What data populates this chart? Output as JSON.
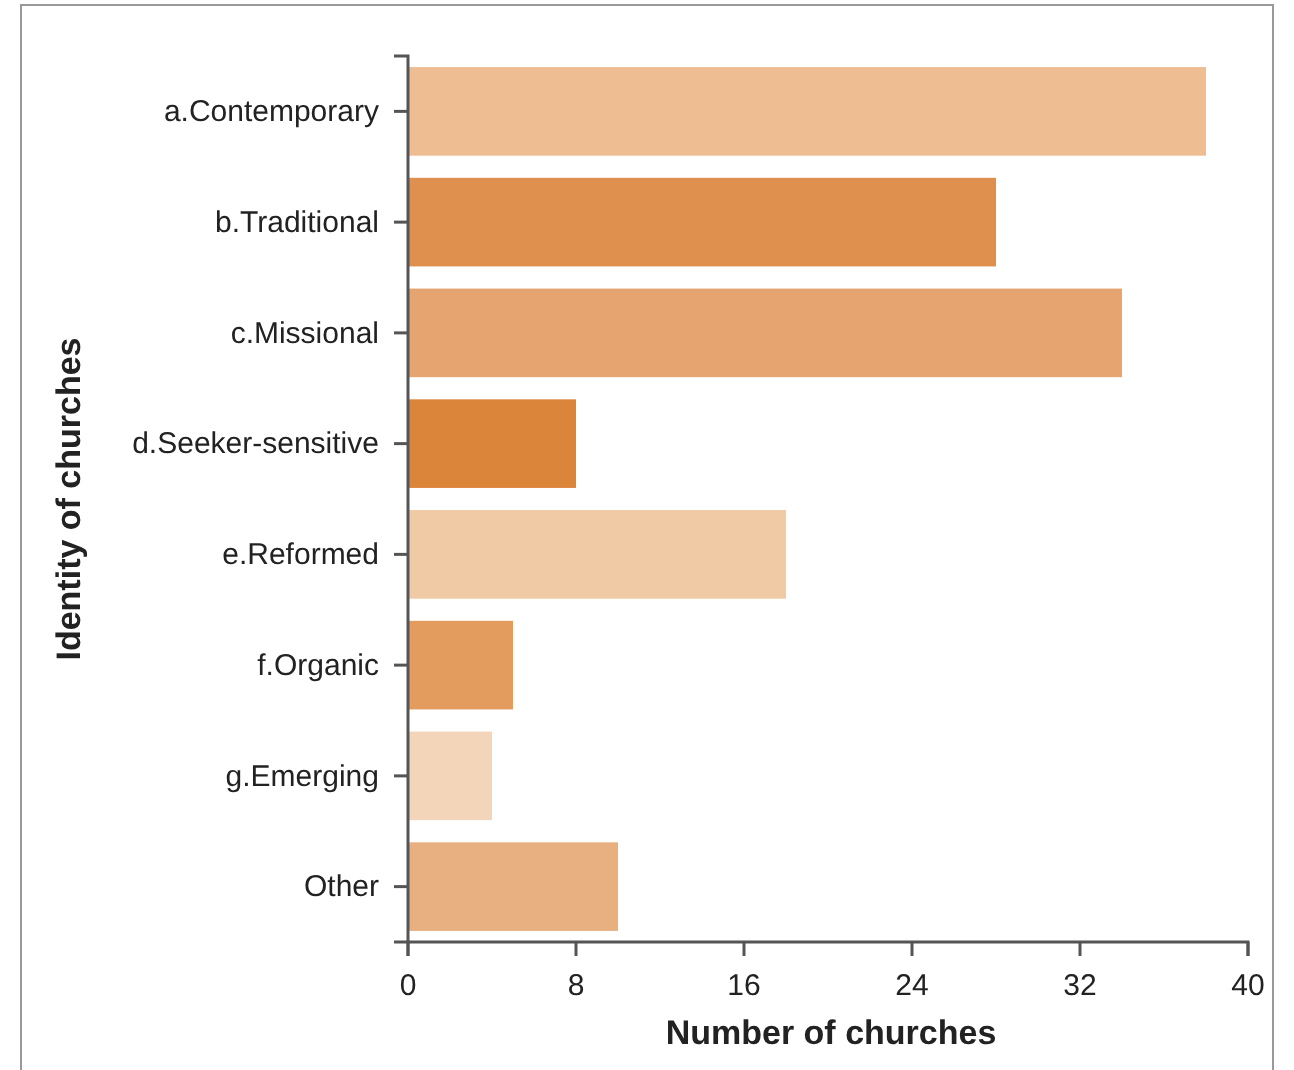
{
  "chart_data": {
    "type": "bar",
    "orientation": "horizontal",
    "xlabel": "Number of churches",
    "ylabel": "Identity of churches",
    "categories": [
      "a.Contemporary",
      "b.Traditional",
      "c.Missional",
      "d.Seeker-sensitive",
      "e.Reformed",
      "f.Organic",
      "g.Emerging",
      "Other"
    ],
    "values": [
      38,
      28,
      34,
      8,
      18,
      5,
      4,
      10
    ],
    "colors": [
      "#eebd92",
      "#df904e",
      "#e6a570",
      "#db853a",
      "#f0c9a5",
      "#e39b5e",
      "#f3d5b9",
      "#e8af80"
    ],
    "xlim": [
      0,
      40
    ],
    "xticks": [
      0,
      8,
      16,
      24,
      32,
      40
    ]
  }
}
